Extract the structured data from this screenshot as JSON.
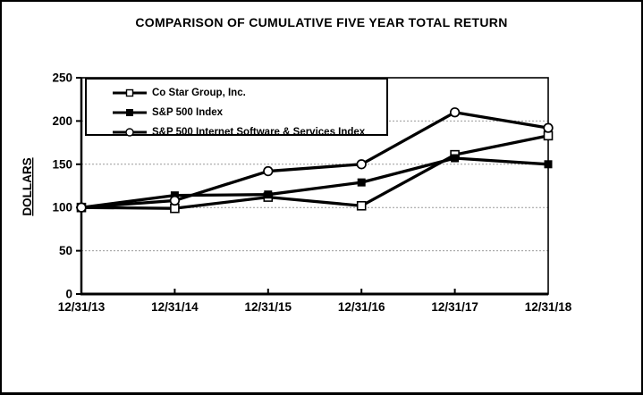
{
  "page": {
    "background": "#ffffff",
    "border_color": "#000000"
  },
  "chart_data": {
    "type": "line",
    "title": "COMPARISON OF CUMULATIVE FIVE YEAR TOTAL RETURN",
    "xlabel": "",
    "ylabel": "DOLLARS",
    "categories": [
      "12/31/13",
      "12/31/14",
      "12/31/15",
      "12/31/16",
      "12/31/17",
      "12/31/18"
    ],
    "series": [
      {
        "name": "Co Star Group, Inc.",
        "marker": "open-square",
        "values": [
          100,
          99,
          112,
          102,
          161,
          183
        ]
      },
      {
        "name": "S&P 500 Index",
        "marker": "filled-square",
        "values": [
          100,
          114,
          115,
          129,
          157,
          150
        ]
      },
      {
        "name": "S&P 500 Internet Software & Services Index",
        "marker": "open-circle",
        "values": [
          100,
          108,
          142,
          150,
          210,
          192
        ]
      }
    ],
    "ylim": [
      0,
      250
    ],
    "yticks": [
      0,
      50,
      100,
      150,
      200,
      250
    ],
    "grid": "horizontal-dotted",
    "legend_position": "top-left-inside",
    "line_color": "#000000",
    "grid_color": "#9a9a9a",
    "text_color": "#000000"
  }
}
